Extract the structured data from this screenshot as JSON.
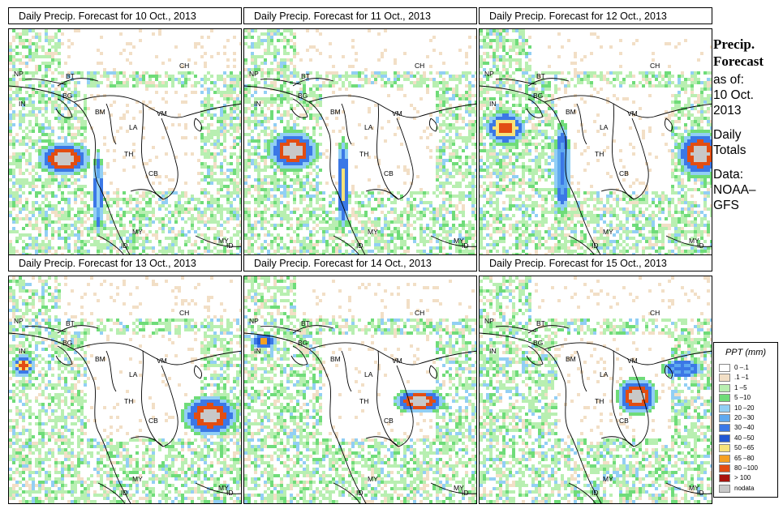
{
  "panels": [
    {
      "title": "Daily Precip. Forecast for  10 Oct., 2013"
    },
    {
      "title": "Daily Precip. Forecast for  11 Oct., 2013"
    },
    {
      "title": "Daily Precip. Forecast for  12 Oct., 2013"
    },
    {
      "title": "Daily Precip. Forecast for  13 Oct., 2013"
    },
    {
      "title": "Daily Precip. Forecast for  14 Oct., 2013"
    },
    {
      "title": "Daily Precip. Forecast for  15 Oct., 2013"
    }
  ],
  "map_labels": [
    "CH",
    "NP",
    "BT",
    "BG",
    "IN",
    "BM",
    "VM",
    "LA",
    "TH",
    "CB",
    "MY",
    "ID"
  ],
  "sidebar": {
    "title_line1": "Precip.",
    "title_line2": "Forecast",
    "as_of_label": "as of:",
    "date_line1": "10 Oct.",
    "date_line2": "2013",
    "totals_line1": "Daily",
    "totals_line2": "Totals",
    "data_line1": "Data:",
    "data_line2": "NOAA–",
    "data_line3": "GFS"
  },
  "legend": {
    "title": "PPT (mm)",
    "items": [
      {
        "label": "0 –.1",
        "color": "#ffffff"
      },
      {
        "label": ".1 –1",
        "color": "#f2dfc6"
      },
      {
        "label": "1 –5",
        "color": "#b8efb1"
      },
      {
        "label": "5 –10",
        "color": "#6fdc79"
      },
      {
        "label": "10 –20",
        "color": "#92cff4"
      },
      {
        "label": "20 –30",
        "color": "#5fa9ef"
      },
      {
        "label": "30 –40",
        "color": "#3b78e6"
      },
      {
        "label": "40 –50",
        "color": "#2357d2"
      },
      {
        "label": "50 –65",
        "color": "#f7e27a"
      },
      {
        "label": "65 –80",
        "color": "#f5a021"
      },
      {
        "label": "80 –100",
        "color": "#e24d12"
      },
      {
        "label": "> 100",
        "color": "#a8130c"
      },
      {
        "label": "nodata",
        "color": "#c8c8c8"
      }
    ]
  }
}
